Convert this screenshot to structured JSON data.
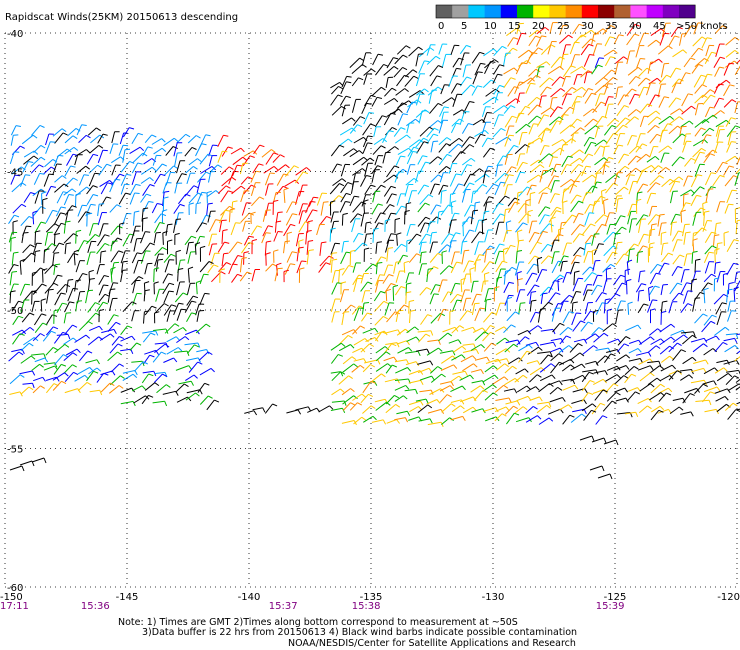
{
  "chart_data": {
    "type": "wind-barb-map",
    "title": "Rapidscat Winds(25KM) 20150613 descending",
    "x_ticks": [
      "-150",
      "-145",
      "-140",
      "-135",
      "-130",
      "-125",
      "-120"
    ],
    "x_values": [
      -150,
      -145,
      -140,
      -135,
      -130,
      -125,
      -120
    ],
    "xlim": [
      -150,
      -120
    ],
    "y_ticks": [
      "-40",
      "-45",
      "-50",
      "-55",
      "-60"
    ],
    "y_values": [
      -40,
      -45,
      -50,
      -55,
      -60
    ],
    "ylim": [
      -60,
      -40
    ],
    "grid": "dotted",
    "legend": {
      "labels": [
        "0",
        "5",
        "10",
        "15",
        "20",
        "25",
        "30",
        "35",
        "40",
        "45",
        ">50 knots"
      ],
      "colors": [
        "#606060",
        "#a0a0a0",
        "#00c8ff",
        "#0096ff",
        "#0000ff",
        "#00b400",
        "#ffff00",
        "#ffc800",
        "#ff8c00",
        "#ff0000",
        "#8b0000",
        "#b06030",
        "#ff50ff",
        "#c000ff",
        "#8000c0",
        "#50008c"
      ],
      "placement": "top-right"
    },
    "times": [
      {
        "x": -150,
        "label": "17:11"
      },
      {
        "x": -146.3,
        "label": "15:36"
      },
      {
        "x": -138.6,
        "label": "15:37"
      },
      {
        "x": -135.2,
        "label": "15:38"
      },
      {
        "x": -125.2,
        "label": "15:39"
      }
    ],
    "swaths": [
      {
        "lon": [
          -150,
          -135
        ],
        "lat": [
          -44.5,
          -55.3
        ],
        "note": "western swath, blues and blacks"
      },
      {
        "lon": [
          -137,
          -123
        ],
        "lat": [
          -40,
          -55.5
        ],
        "note": "central swath, cyan/orange/red"
      },
      {
        "lon": [
          -130,
          -120
        ],
        "lat": [
          -40,
          -55
        ],
        "note": "eastern swath, orange/yellow/blue"
      }
    ],
    "notes": [
      "Note: 1) Times are GMT 2)Times along bottom correspond to measurement at ~50S",
      "3)Data buffer is 22 hrs from 20150613 4) Black wind barbs indicate possible contamination",
      "NOAA/NESDIS/Center for Satellite Applications and Research"
    ]
  }
}
